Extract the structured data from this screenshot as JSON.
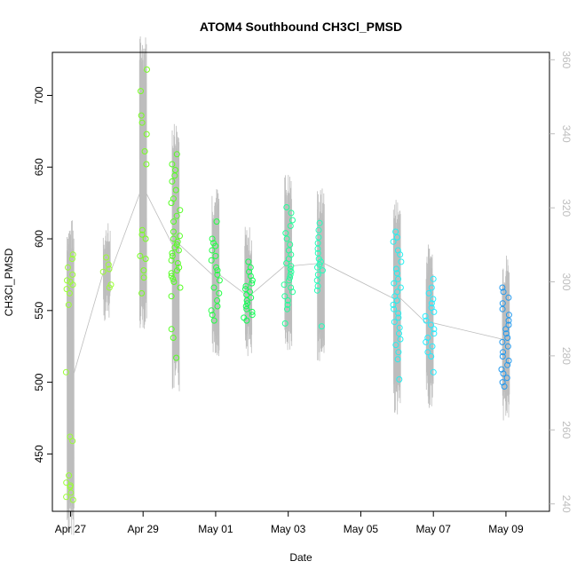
{
  "chart_data": {
    "type": "scatter",
    "title": "ATOM4 Southbound CH3Cl_PMSD",
    "xlabel": "Date",
    "ylabel": "CH3Cl_PMSD",
    "x_ticks": [
      "Apr 27",
      "Apr 29",
      "May 01",
      "May 03",
      "May 05",
      "May 07",
      "May 09"
    ],
    "xlim_days": [
      26.5,
      40.2
    ],
    "ylim": [
      410,
      730
    ],
    "y_ticks": [
      450,
      500,
      550,
      600,
      650,
      700
    ],
    "y2lim": [
      238,
      362
    ],
    "y2_ticks": [
      240,
      260,
      280,
      300,
      320,
      340,
      360
    ],
    "grid": false,
    "legend": "none",
    "point_style": "open-circle",
    "line_series_color": "#bdbdbd",
    "clusters": [
      {
        "day": 27.0,
        "color": "#99ff33",
        "values": [
          589,
          586,
          580,
          575,
          571,
          570,
          568,
          565,
          562,
          554,
          507,
          462,
          459,
          435,
          430,
          428,
          427,
          423,
          420,
          418
        ]
      },
      {
        "day": 28.0,
        "color": "#99ff33",
        "values": [
          587,
          582,
          579,
          577,
          568,
          566
        ]
      },
      {
        "day": 29.0,
        "color": "#77ff22",
        "values": [
          718,
          703,
          686,
          681,
          673,
          661,
          652,
          606,
          603,
          600,
          588,
          586,
          578,
          573,
          562
        ]
      },
      {
        "day": 29.9,
        "color": "#55ff22",
        "values": [
          659,
          652,
          648,
          644,
          640,
          634,
          628,
          625,
          620,
          616,
          612,
          605,
          602,
          600,
          598,
          596,
          594,
          592,
          590,
          588,
          585,
          583,
          580,
          578,
          576,
          574,
          572,
          570,
          566,
          560,
          537,
          531,
          517
        ]
      },
      {
        "day": 31.0,
        "color": "#22ff44",
        "values": [
          612,
          600,
          597,
          595,
          592,
          588,
          585,
          580,
          578,
          575,
          571,
          566,
          562,
          557,
          553,
          550,
          547,
          543
        ]
      },
      {
        "day": 31.9,
        "color": "#11ff55",
        "values": [
          584,
          580,
          577,
          574,
          571,
          569,
          567,
          565,
          563,
          561,
          559,
          557,
          555,
          553,
          551,
          549,
          547,
          545,
          543
        ]
      },
      {
        "day": 33.0,
        "color": "#22ff99",
        "values": [
          622,
          618,
          613,
          609,
          604,
          600,
          596,
          592,
          589,
          586,
          583,
          581,
          579,
          577,
          575,
          573,
          571,
          568,
          566,
          563,
          560,
          557,
          554,
          551,
          541
        ]
      },
      {
        "day": 33.9,
        "color": "#22ffbb",
        "values": [
          611,
          606,
          601,
          597,
          593,
          590,
          586,
          584,
          582,
          580,
          578,
          575,
          571,
          567,
          564,
          539
        ]
      },
      {
        "day": 36.0,
        "color": "#22f0f0",
        "values": [
          605,
          601,
          598,
          592,
          589,
          584,
          579,
          576,
          572,
          569,
          566,
          563,
          560,
          557,
          554,
          551,
          548,
          545,
          542,
          538,
          534,
          530,
          526,
          521,
          516,
          502
        ]
      },
      {
        "day": 36.9,
        "color": "#22eeff",
        "values": [
          572,
          566,
          562,
          558,
          555,
          552,
          549,
          546,
          543,
          540,
          537,
          534,
          531,
          528,
          525,
          521,
          518,
          507
        ]
      },
      {
        "day": 39.0,
        "color": "#2299ee",
        "values": [
          566,
          563,
          559,
          555,
          551,
          547,
          543,
          540,
          537,
          534,
          531,
          528,
          525,
          521,
          518,
          515,
          512,
          509,
          506,
          503,
          500,
          497
        ]
      }
    ]
  }
}
